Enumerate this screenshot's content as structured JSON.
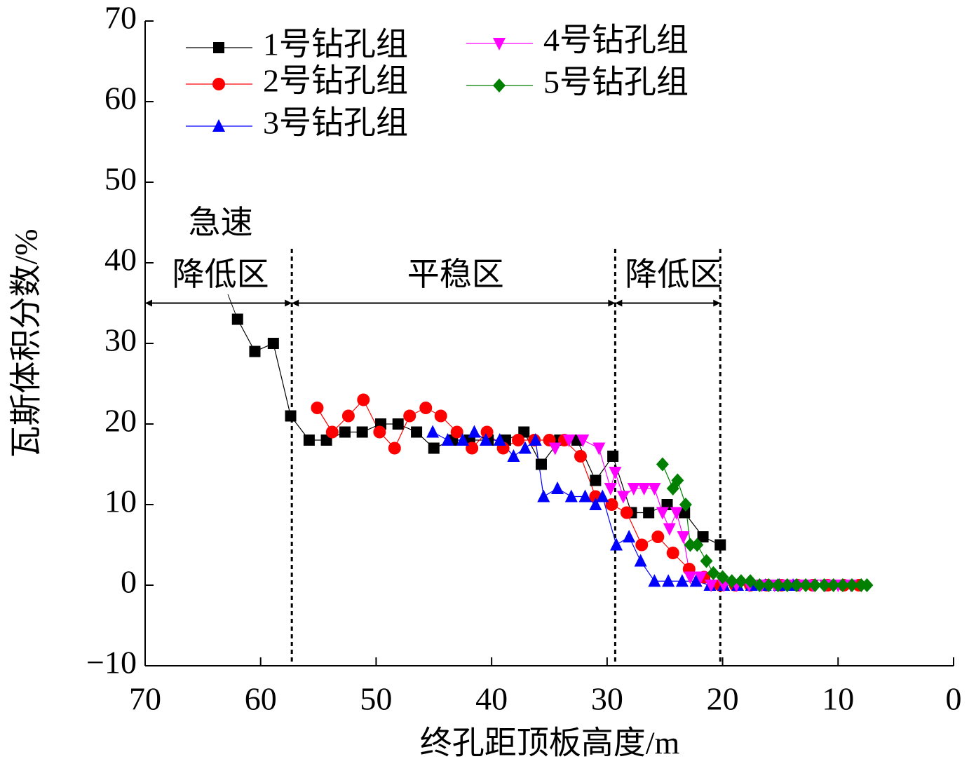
{
  "chart_data": {
    "type": "line",
    "xlabel": "终孔距顶板高度/m",
    "ylabel": "瓦斯体积分数/%",
    "xlim": [
      70,
      0
    ],
    "ylim": [
      -10,
      70
    ],
    "xticks": [
      70,
      60,
      50,
      40,
      30,
      20,
      10,
      0
    ],
    "yticks": [
      {
        "value": -10,
        "label": "−10"
      },
      0,
      10,
      20,
      30,
      40,
      50,
      60,
      70
    ],
    "legend": "upper left",
    "series": [
      {
        "name": "1号钻孔组",
        "color": "#000000",
        "marker": "square",
        "x": [
          62,
          60.5,
          58.9,
          57.4,
          55.8,
          54.3,
          52.7,
          51.2,
          49.6,
          48.1,
          46.5,
          45,
          43.4,
          41.9,
          40.3,
          38.8,
          37.2,
          35.7,
          34.1,
          32.6,
          31,
          29.5,
          27.9,
          26.4,
          24.8,
          23.3,
          21.7,
          20.2
        ],
        "values": [
          33,
          29,
          30,
          21,
          18,
          18,
          19,
          19,
          20,
          20,
          19,
          17,
          18,
          18,
          18,
          18,
          19,
          15,
          18,
          18,
          13,
          16,
          9,
          9,
          10,
          9,
          6,
          5
        ]
      },
      {
        "name": "2号钻孔组",
        "color": "#ff0000",
        "marker": "circle",
        "x": [
          55.1,
          53.8,
          52.4,
          51.1,
          49.7,
          48.4,
          47.1,
          45.7,
          44.4,
          43.0,
          41.7,
          40.4,
          39.0,
          37.7,
          36.3,
          35.0,
          33.7,
          32.3,
          31.0,
          29.6,
          28.3,
          27.0,
          25.6,
          24.3,
          22.9,
          21.6,
          20.2,
          18.9,
          17.6,
          16.2,
          14.9,
          13.5,
          12.2,
          10.9,
          9.5,
          8.2
        ],
        "values": [
          22,
          19,
          21,
          23,
          19,
          17,
          21,
          22,
          21,
          19,
          17,
          19,
          17,
          18,
          18,
          18,
          18,
          16,
          11,
          10,
          9,
          5,
          6,
          4,
          2,
          1,
          0,
          0,
          0,
          0,
          0,
          0,
          0,
          0,
          0,
          0
        ]
      },
      {
        "name": "3号钻孔组",
        "color": "#0000ff",
        "marker": "triangle-up",
        "x": [
          45.1,
          43.8,
          42.5,
          41.5,
          40.5,
          39.3,
          38.1,
          37.1,
          36.2,
          35.5,
          34.3,
          33.1,
          31.9,
          31.0,
          30.4,
          29.2,
          28.1,
          27.1,
          25.9,
          24.7,
          23.5,
          22.3,
          21.1,
          19.9,
          18.7,
          17.5,
          16.3,
          15.1,
          13.9
        ],
        "values": [
          19,
          18,
          18,
          19,
          18,
          18,
          16,
          17,
          18,
          11,
          12,
          11,
          11,
          10,
          11,
          5,
          6,
          3,
          0.5,
          0.5,
          0.5,
          0.5,
          0,
          0,
          0,
          0,
          0,
          0,
          0
        ]
      },
      {
        "name": "4号钻孔组",
        "color": "#ff00ff",
        "marker": "triangle-down",
        "x": [
          34.5,
          33.3,
          32.1,
          30.7,
          29.7,
          29.3,
          28.6,
          27.7,
          26.8,
          25.9,
          25.2,
          24.6,
          24.0,
          23.4,
          22.8,
          21.9,
          21.0,
          19.9,
          18.8,
          17.7,
          16.6,
          15.5,
          14.4,
          13.3,
          12.2,
          11.1,
          10.0,
          8.9
        ],
        "values": [
          17,
          18,
          18,
          17,
          12,
          14,
          11,
          12,
          12,
          12,
          9,
          7,
          9,
          6,
          1,
          1,
          0,
          0,
          0,
          0,
          0,
          0,
          0,
          0,
          0,
          0,
          0,
          0
        ]
      },
      {
        "name": "5号钻孔组",
        "color": "#007f00",
        "marker": "diamond",
        "x": [
          25.2,
          24.3,
          23.9,
          23.2,
          22.8,
          22.2,
          21.4,
          20.8,
          20.0,
          19.2,
          18.4,
          17.6,
          16.8,
          16.0,
          15.2,
          14.4,
          13.6,
          12.8,
          12.0,
          11.2,
          10.4,
          9.6,
          8.8,
          8.0,
          7.5
        ],
        "values": [
          15,
          12,
          13,
          10,
          5,
          5,
          3,
          1.5,
          1,
          0.5,
          0.5,
          0.5,
          0,
          0,
          0,
          0,
          0,
          0,
          0,
          0,
          0,
          0,
          0,
          0,
          0
        ]
      }
    ],
    "zone_boundaries": [
      57.3,
      29.3,
      20.2
    ],
    "zone_arrow_y": 35,
    "zones": [
      {
        "label": [
          "急速",
          "降低区"
        ],
        "from": 70,
        "to": 57.3
      },
      {
        "label": [
          "平稳区"
        ],
        "from": 57.3,
        "to": 29.3
      },
      {
        "label": [
          "降低区"
        ],
        "from": 29.3,
        "to": 20.2
      }
    ]
  }
}
